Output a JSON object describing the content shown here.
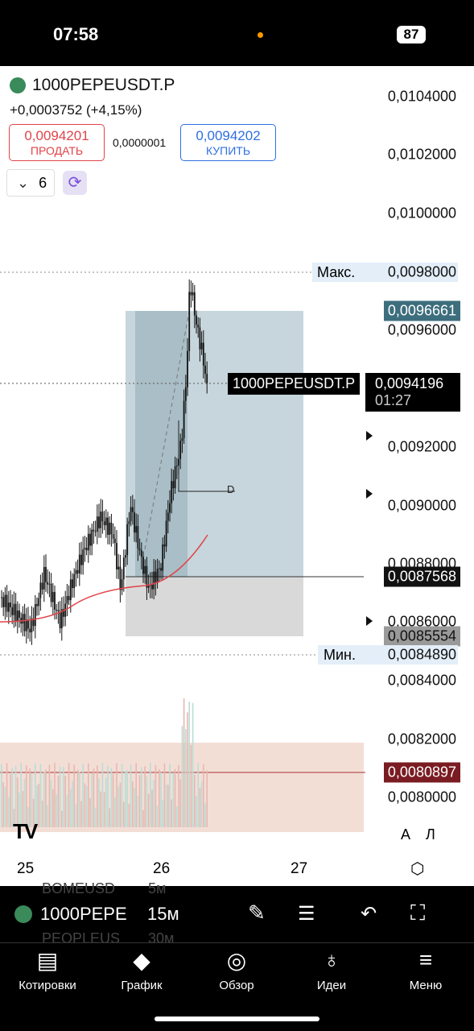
{
  "status_bar": {
    "time": "07:58",
    "battery": "87"
  },
  "header": {
    "symbol": "1000PEPEUSDT.P",
    "change": "+0,0003752 (+4,15%)",
    "sell": {
      "price": "0,0094201",
      "label": "ПРОДАТЬ"
    },
    "spread": "0,0000001",
    "buy": {
      "price": "0,0094202",
      "label": "КУПИТЬ"
    },
    "indicator_count": "6"
  },
  "price_axis": {
    "ticks": [
      "0,0104000",
      "0,0102000",
      "0,0100000",
      "0,0096000",
      "0,0092000",
      "0,0090000",
      "0,0088000",
      "0,0086000",
      "0,0084000",
      "0,0082000",
      "0,0080000"
    ],
    "max": {
      "label": "Макс.",
      "price": "0,0098000"
    },
    "min": {
      "label": "Мин.",
      "price": "0,0084890"
    },
    "position_target": "0,0096661",
    "current": {
      "symbol": "1000PEPEUSDT.P",
      "price": "0,0094196",
      "countdown": "01:27"
    },
    "position_stop": "0,0087568",
    "position_entry": "0,0085554",
    "horizontal_line": "0,0080897",
    "scale_modes": [
      "А",
      "Л"
    ]
  },
  "drawing_label": "D",
  "time_axis": [
    "25",
    "26",
    "27"
  ],
  "toolbar": {
    "symbol": "1000PEPE",
    "interval": "15м",
    "background_items": [
      {
        "symbol": "BOMEUSD",
        "interval": "5м"
      },
      {
        "symbol": "PEOPLEUS",
        "interval": "30м"
      }
    ]
  },
  "nav": [
    "Котировки",
    "График",
    "Обзор",
    "Идеи",
    "Меню"
  ]
}
